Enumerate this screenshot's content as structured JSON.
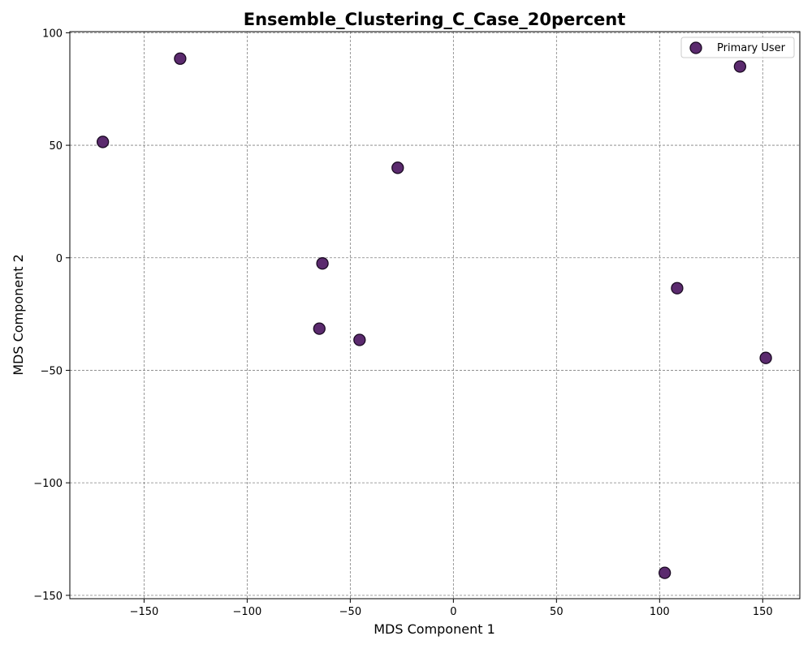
{
  "chart_data": {
    "type": "scatter",
    "title": "Ensemble_Clustering_C_Case_20percent",
    "xlabel": "MDS Component 1",
    "ylabel": "MDS Component 2",
    "xlim": [
      -186,
      168
    ],
    "ylim": [
      -151.5,
      100.5
    ],
    "xticks": [
      -150,
      -100,
      -50,
      0,
      50,
      100,
      150
    ],
    "xtick_labels": [
      "−150",
      "−100",
      "−50",
      "0",
      "50",
      "100",
      "150"
    ],
    "yticks": [
      -150,
      -100,
      -50,
      0,
      50,
      100
    ],
    "ytick_labels": [
      "−150",
      "−100",
      "−50",
      "0",
      "50",
      "100"
    ],
    "grid": true,
    "legend_position": "top-right",
    "series": [
      {
        "name": "Primary User",
        "color": "#5b2a6e",
        "edge_color": "#1a0a22",
        "x": [
          -132.5,
          -170,
          -27,
          -63.5,
          -65,
          -45.5,
          108.5,
          139,
          151.5,
          102.5
        ],
        "y": [
          88.5,
          51.5,
          40,
          -2.5,
          -31.5,
          -36.5,
          -13.5,
          85,
          -44.5,
          -140
        ]
      }
    ]
  }
}
